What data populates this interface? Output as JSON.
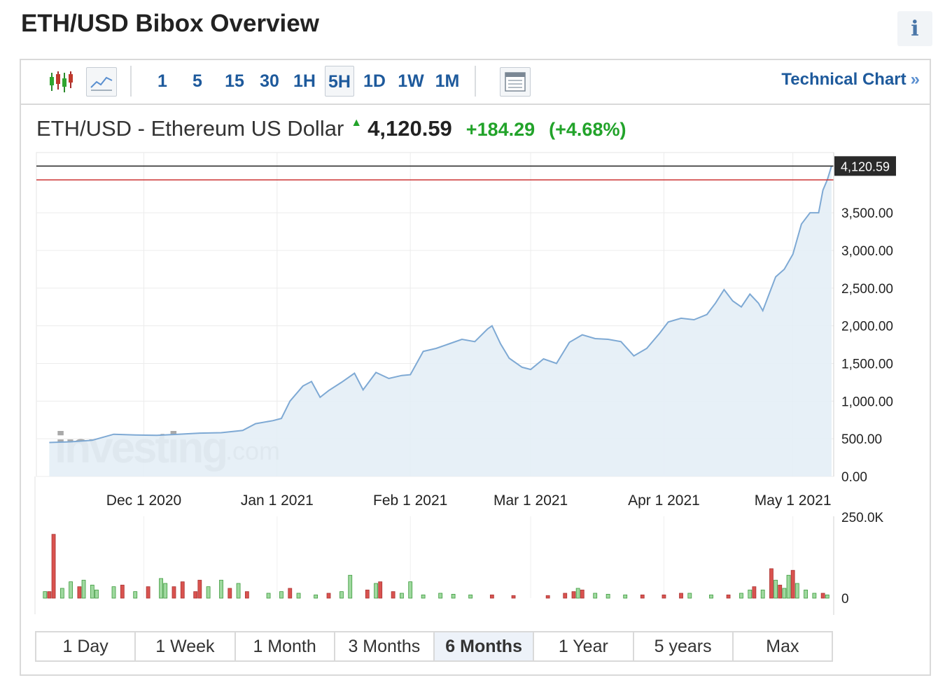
{
  "header": {
    "title": "ETH/USD Bibox Overview",
    "info_icon": "info-icon",
    "info_label": "i"
  },
  "toolbar": {
    "chart_type_icons": [
      "candlestick-icon",
      "line-chart-icon"
    ],
    "timeframes": [
      "1",
      "5",
      "15",
      "30",
      "1H",
      "5H",
      "1D",
      "1W",
      "1M"
    ],
    "active_timeframe": "5H",
    "table_icon": "table-view-icon",
    "technical_chart_label": "Technical Chart",
    "technical_chart_arrow": "»"
  },
  "quote": {
    "name": "ETH/USD - Ethereum US Dollar",
    "direction_icon": "up-arrow-icon",
    "price": "4,120.59",
    "change": "+184.29",
    "change_pct": "(+4.68%)"
  },
  "colors": {
    "up": "#22a32a",
    "down": "#c0392b",
    "line": "#7ea9d4",
    "area": "#e4eef6",
    "link": "#1e5a9c"
  },
  "watermark": {
    "brand": "investing",
    "suffix": ".com"
  },
  "chart_data": {
    "type": "area",
    "title": "ETH/USD - Ethereum US Dollar",
    "x_tick_labels": [
      "Dec 1 2020",
      "Jan 1 2021",
      "Feb 1 2021",
      "Mar 1 2021",
      "Apr 1 2021",
      "May 1 2021"
    ],
    "y_tick_labels": [
      "3,500.00",
      "3,000.00",
      "2,500.00",
      "2,000.00",
      "1,500.00",
      "1,000.00",
      "500.00",
      "0.00"
    ],
    "ylim": [
      0,
      4300
    ],
    "current_price_label": "4,120.59",
    "current_price": 4120.59,
    "previous_close": 3936.3,
    "grid": true,
    "price_series": [
      {
        "date": "2020-11-09",
        "close": 450
      },
      {
        "date": "2020-11-14",
        "close": 460
      },
      {
        "date": "2020-11-19",
        "close": 480
      },
      {
        "date": "2020-11-24",
        "close": 560
      },
      {
        "date": "2020-11-29",
        "close": 550
      },
      {
        "date": "2020-12-04",
        "close": 545
      },
      {
        "date": "2020-12-09",
        "close": 560
      },
      {
        "date": "2020-12-14",
        "close": 575
      },
      {
        "date": "2020-12-19",
        "close": 580
      },
      {
        "date": "2020-12-24",
        "close": 610
      },
      {
        "date": "2020-12-27",
        "close": 700
      },
      {
        "date": "2020-12-31",
        "close": 740
      },
      {
        "date": "2021-01-02",
        "close": 770
      },
      {
        "date": "2021-01-04",
        "close": 1000
      },
      {
        "date": "2021-01-07",
        "close": 1200
      },
      {
        "date": "2021-01-09",
        "close": 1260
      },
      {
        "date": "2021-01-11",
        "close": 1050
      },
      {
        "date": "2021-01-13",
        "close": 1140
      },
      {
        "date": "2021-01-16",
        "close": 1250
      },
      {
        "date": "2021-01-19",
        "close": 1370
      },
      {
        "date": "2021-01-21",
        "close": 1150
      },
      {
        "date": "2021-01-24",
        "close": 1380
      },
      {
        "date": "2021-01-27",
        "close": 1300
      },
      {
        "date": "2021-01-30",
        "close": 1340
      },
      {
        "date": "2021-02-01",
        "close": 1350
      },
      {
        "date": "2021-02-04",
        "close": 1660
      },
      {
        "date": "2021-02-07",
        "close": 1700
      },
      {
        "date": "2021-02-10",
        "close": 1760
      },
      {
        "date": "2021-02-13",
        "close": 1820
      },
      {
        "date": "2021-02-16",
        "close": 1790
      },
      {
        "date": "2021-02-19",
        "close": 1960
      },
      {
        "date": "2021-02-20",
        "close": 2000
      },
      {
        "date": "2021-02-22",
        "close": 1760
      },
      {
        "date": "2021-02-24",
        "close": 1570
      },
      {
        "date": "2021-02-27",
        "close": 1450
      },
      {
        "date": "2021-03-01",
        "close": 1420
      },
      {
        "date": "2021-03-04",
        "close": 1560
      },
      {
        "date": "2021-03-07",
        "close": 1500
      },
      {
        "date": "2021-03-10",
        "close": 1780
      },
      {
        "date": "2021-03-13",
        "close": 1880
      },
      {
        "date": "2021-03-16",
        "close": 1830
      },
      {
        "date": "2021-03-19",
        "close": 1820
      },
      {
        "date": "2021-03-22",
        "close": 1790
      },
      {
        "date": "2021-03-25",
        "close": 1600
      },
      {
        "date": "2021-03-28",
        "close": 1700
      },
      {
        "date": "2021-03-31",
        "close": 1900
      },
      {
        "date": "2021-04-02",
        "close": 2050
      },
      {
        "date": "2021-04-05",
        "close": 2100
      },
      {
        "date": "2021-04-08",
        "close": 2080
      },
      {
        "date": "2021-04-11",
        "close": 2150
      },
      {
        "date": "2021-04-13",
        "close": 2300
      },
      {
        "date": "2021-04-15",
        "close": 2480
      },
      {
        "date": "2021-04-17",
        "close": 2330
      },
      {
        "date": "2021-04-19",
        "close": 2250
      },
      {
        "date": "2021-04-21",
        "close": 2420
      },
      {
        "date": "2021-04-23",
        "close": 2300
      },
      {
        "date": "2021-04-24",
        "close": 2200
      },
      {
        "date": "2021-04-27",
        "close": 2650
      },
      {
        "date": "2021-04-29",
        "close": 2750
      },
      {
        "date": "2021-05-01",
        "close": 2950
      },
      {
        "date": "2021-05-03",
        "close": 3350
      },
      {
        "date": "2021-05-05",
        "close": 3500
      },
      {
        "date": "2021-05-07",
        "close": 3500
      },
      {
        "date": "2021-05-08",
        "close": 3800
      },
      {
        "date": "2021-05-09",
        "close": 3936
      },
      {
        "date": "2021-05-10",
        "close": 4120.59
      }
    ],
    "volume": {
      "y_tick_labels": [
        "250.0K",
        "0"
      ],
      "ylim": [
        0,
        250000
      ],
      "bars": [
        {
          "date": "2020-11-08",
          "value": 20000,
          "dir": "up"
        },
        {
          "date": "2020-11-09",
          "value": 20000,
          "dir": "down"
        },
        {
          "date": "2020-11-10",
          "value": 195000,
          "dir": "down"
        },
        {
          "date": "2020-11-12",
          "value": 30000,
          "dir": "up"
        },
        {
          "date": "2020-11-14",
          "value": 50000,
          "dir": "up"
        },
        {
          "date": "2020-11-16",
          "value": 35000,
          "dir": "down"
        },
        {
          "date": "2020-11-17",
          "value": 55000,
          "dir": "up"
        },
        {
          "date": "2020-11-19",
          "value": 40000,
          "dir": "up"
        },
        {
          "date": "2020-11-20",
          "value": 25000,
          "dir": "up"
        },
        {
          "date": "2020-11-24",
          "value": 35000,
          "dir": "up"
        },
        {
          "date": "2020-11-26",
          "value": 40000,
          "dir": "down"
        },
        {
          "date": "2020-11-29",
          "value": 20000,
          "dir": "up"
        },
        {
          "date": "2020-12-02",
          "value": 35000,
          "dir": "down"
        },
        {
          "date": "2020-12-05",
          "value": 60000,
          "dir": "up"
        },
        {
          "date": "2020-12-06",
          "value": 45000,
          "dir": "up"
        },
        {
          "date": "2020-12-08",
          "value": 35000,
          "dir": "down"
        },
        {
          "date": "2020-12-10",
          "value": 50000,
          "dir": "down"
        },
        {
          "date": "2020-12-13",
          "value": 20000,
          "dir": "down"
        },
        {
          "date": "2020-12-14",
          "value": 55000,
          "dir": "down"
        },
        {
          "date": "2020-12-16",
          "value": 35000,
          "dir": "up"
        },
        {
          "date": "2020-12-19",
          "value": 55000,
          "dir": "up"
        },
        {
          "date": "2020-12-21",
          "value": 30000,
          "dir": "down"
        },
        {
          "date": "2020-12-23",
          "value": 45000,
          "dir": "up"
        },
        {
          "date": "2020-12-25",
          "value": 20000,
          "dir": "down"
        },
        {
          "date": "2020-12-30",
          "value": 15000,
          "dir": "up"
        },
        {
          "date": "2021-01-02",
          "value": 20000,
          "dir": "up"
        },
        {
          "date": "2021-01-04",
          "value": 30000,
          "dir": "down"
        },
        {
          "date": "2021-01-06",
          "value": 15000,
          "dir": "up"
        },
        {
          "date": "2021-01-10",
          "value": 10000,
          "dir": "up"
        },
        {
          "date": "2021-01-13",
          "value": 15000,
          "dir": "down"
        },
        {
          "date": "2021-01-16",
          "value": 20000,
          "dir": "up"
        },
        {
          "date": "2021-01-18",
          "value": 70000,
          "dir": "up"
        },
        {
          "date": "2021-01-22",
          "value": 25000,
          "dir": "down"
        },
        {
          "date": "2021-01-24",
          "value": 45000,
          "dir": "up"
        },
        {
          "date": "2021-01-25",
          "value": 50000,
          "dir": "down"
        },
        {
          "date": "2021-01-28",
          "value": 20000,
          "dir": "down"
        },
        {
          "date": "2021-01-30",
          "value": 15000,
          "dir": "up"
        },
        {
          "date": "2021-02-01",
          "value": 50000,
          "dir": "up"
        },
        {
          "date": "2021-02-04",
          "value": 10000,
          "dir": "up"
        },
        {
          "date": "2021-02-08",
          "value": 15000,
          "dir": "up"
        },
        {
          "date": "2021-02-11",
          "value": 12000,
          "dir": "up"
        },
        {
          "date": "2021-02-15",
          "value": 10000,
          "dir": "up"
        },
        {
          "date": "2021-02-20",
          "value": 10000,
          "dir": "down"
        },
        {
          "date": "2021-02-25",
          "value": 8000,
          "dir": "down"
        },
        {
          "date": "2021-03-05",
          "value": 8000,
          "dir": "down"
        },
        {
          "date": "2021-03-09",
          "value": 15000,
          "dir": "down"
        },
        {
          "date": "2021-03-11",
          "value": 20000,
          "dir": "down"
        },
        {
          "date": "2021-03-12",
          "value": 30000,
          "dir": "up"
        },
        {
          "date": "2021-03-13",
          "value": 25000,
          "dir": "down"
        },
        {
          "date": "2021-03-16",
          "value": 15000,
          "dir": "up"
        },
        {
          "date": "2021-03-19",
          "value": 12000,
          "dir": "up"
        },
        {
          "date": "2021-03-23",
          "value": 10000,
          "dir": "up"
        },
        {
          "date": "2021-03-27",
          "value": 10000,
          "dir": "down"
        },
        {
          "date": "2021-04-01",
          "value": 10000,
          "dir": "down"
        },
        {
          "date": "2021-04-05",
          "value": 15000,
          "dir": "down"
        },
        {
          "date": "2021-04-07",
          "value": 15000,
          "dir": "up"
        },
        {
          "date": "2021-04-12",
          "value": 10000,
          "dir": "up"
        },
        {
          "date": "2021-04-16",
          "value": 10000,
          "dir": "down"
        },
        {
          "date": "2021-04-19",
          "value": 15000,
          "dir": "up"
        },
        {
          "date": "2021-04-21",
          "value": 25000,
          "dir": "up"
        },
        {
          "date": "2021-04-22",
          "value": 35000,
          "dir": "down"
        },
        {
          "date": "2021-04-24",
          "value": 25000,
          "dir": "up"
        },
        {
          "date": "2021-04-26",
          "value": 90000,
          "dir": "down"
        },
        {
          "date": "2021-04-27",
          "value": 55000,
          "dir": "up"
        },
        {
          "date": "2021-04-28",
          "value": 40000,
          "dir": "down"
        },
        {
          "date": "2021-04-29",
          "value": 30000,
          "dir": "up"
        },
        {
          "date": "2021-04-30",
          "value": 70000,
          "dir": "up"
        },
        {
          "date": "2021-05-01",
          "value": 85000,
          "dir": "down"
        },
        {
          "date": "2021-05-02",
          "value": 45000,
          "dir": "up"
        },
        {
          "date": "2021-05-04",
          "value": 25000,
          "dir": "up"
        },
        {
          "date": "2021-05-06",
          "value": 15000,
          "dir": "up"
        },
        {
          "date": "2021-05-08",
          "value": 15000,
          "dir": "down"
        },
        {
          "date": "2021-05-09",
          "value": 10000,
          "dir": "up"
        }
      ]
    }
  },
  "range_buttons": [
    "1 Day",
    "1 Week",
    "1 Month",
    "3 Months",
    "6 Months",
    "1 Year",
    "5 years",
    "Max"
  ],
  "active_range": "6 Months"
}
